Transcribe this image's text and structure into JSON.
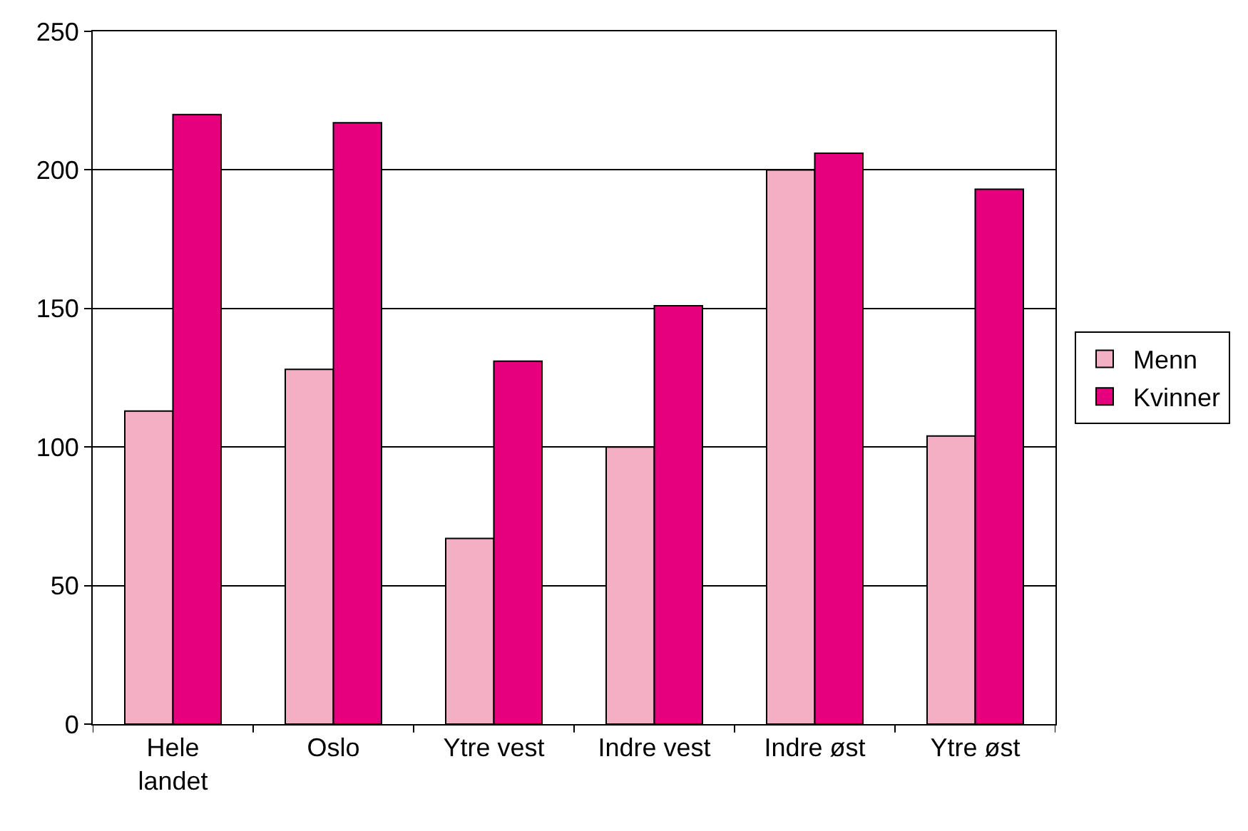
{
  "chart_data": {
    "type": "bar",
    "categories": [
      "Hele landet",
      "Oslo",
      "Ytre vest",
      "Indre vest",
      "Indre øst",
      "Ytre øst"
    ],
    "series": [
      {
        "name": "Menn",
        "color": "#f4afc4",
        "values": [
          113,
          128,
          67,
          100,
          200,
          104
        ]
      },
      {
        "name": "Kvinner",
        "color": "#e6007e",
        "values": [
          220,
          217,
          131,
          151,
          206,
          193
        ]
      }
    ],
    "ylim": [
      0,
      250
    ],
    "yticks": [
      0,
      50,
      100,
      150,
      200,
      250
    ],
    "grid": "y",
    "legend": "right"
  }
}
